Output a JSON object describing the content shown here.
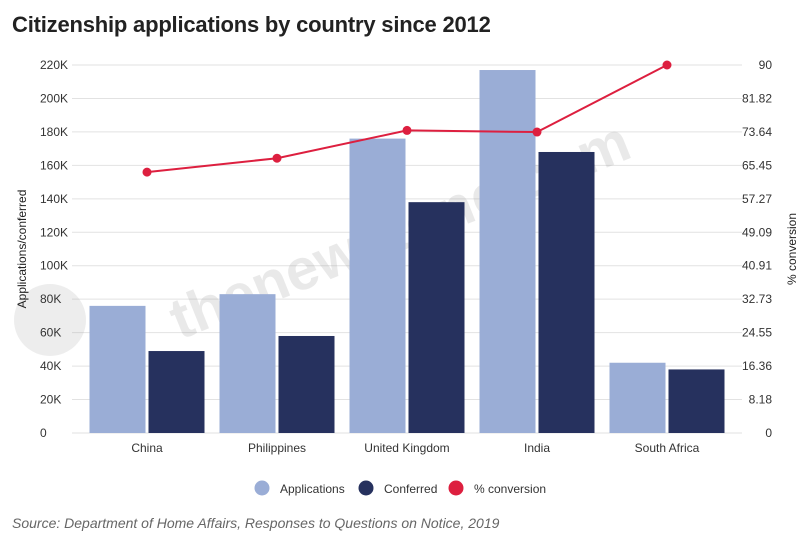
{
  "title": "Citizenship applications by country since 2012",
  "source": "Source: Department of Home Affairs, Responses to Questions on Notice, 2019",
  "colors": {
    "applications": "#9aadd6",
    "conferred": "#26315e",
    "conversion": "#dd1f3f",
    "grid": "#e2e2e2"
  },
  "chart_data": {
    "type": "bar",
    "categories": [
      "China",
      "Philippines",
      "United Kingdom",
      "India",
      "South Africa"
    ],
    "series": [
      {
        "name": "Applications",
        "type": "bar",
        "axis": "left",
        "values": [
          76000,
          83000,
          176000,
          217000,
          42000
        ]
      },
      {
        "name": "Conferred",
        "type": "bar",
        "axis": "left",
        "values": [
          49000,
          58000,
          138000,
          168000,
          38000
        ]
      },
      {
        "name": "% conversion",
        "type": "line",
        "axis": "right",
        "values": [
          63.8,
          67.2,
          74.0,
          73.6,
          90.0
        ]
      }
    ],
    "ylabel": "Applications/conferred",
    "y2label": "% conversion",
    "ylim": [
      0,
      220000
    ],
    "y2lim": [
      0,
      90
    ],
    "yticks": [
      "0",
      "20K",
      "40K",
      "60K",
      "80K",
      "100K",
      "120K",
      "140K",
      "160K",
      "180K",
      "200K",
      "220K"
    ],
    "y2ticks": [
      "0",
      "8.18",
      "16.36",
      "24.55",
      "32.73",
      "40.91",
      "49.09",
      "57.27",
      "65.45",
      "73.64",
      "81.82",
      "90"
    ],
    "grid": true,
    "legend": "bottom"
  }
}
